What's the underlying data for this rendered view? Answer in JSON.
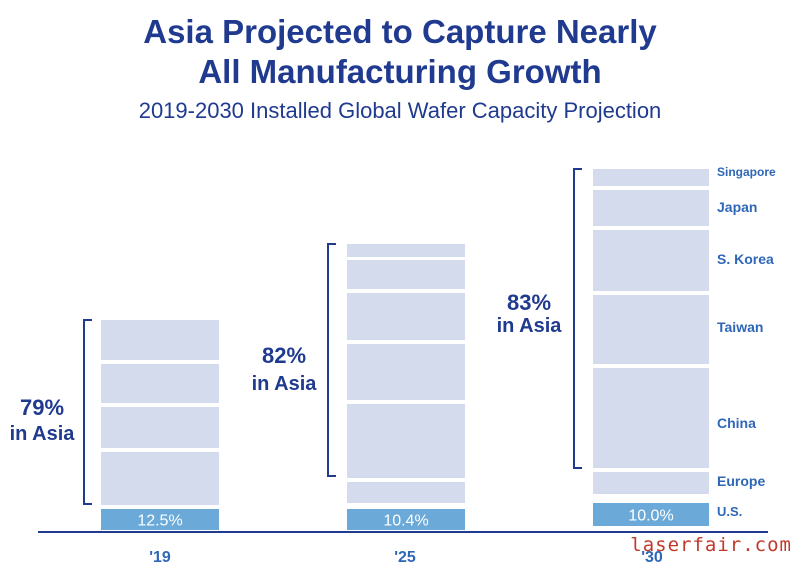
{
  "header": {
    "title_line1": "Asia Projected to Capture Nearly",
    "title_line2": "All Manufacturing Growth",
    "subtitle": "2019-2030 Installed Global Wafer Capacity Projection"
  },
  "watermark": "laserfair.com",
  "colors": {
    "title": "#1f3a8f",
    "segment": "#d3dbec",
    "us_segment": "#6aa9d8",
    "bracket": "#1f3a8f",
    "axis": "#1f3a8f",
    "labels": "#2f67b8"
  },
  "chart_data": {
    "type": "bar",
    "stacked": true,
    "categories": [
      "'19",
      "'25",
      "'30"
    ],
    "us_share_labels": [
      "12.5%",
      "10.4%",
      "10.0%"
    ],
    "asia_share_labels": [
      {
        "pct": "79%",
        "text": "in Asia"
      },
      {
        "pct": "82%",
        "text": "in Asia"
      },
      {
        "pct": "83%",
        "text": "in Asia"
      }
    ],
    "segment_order": [
      "U.S.",
      "Europe",
      "China",
      "Taiwan",
      "S. Korea",
      "Japan",
      "Singapore"
    ],
    "segment_labels_2030": [
      "Singapore",
      "Japan",
      "S. Korea",
      "Taiwan",
      "China",
      "Europe",
      "U.S."
    ],
    "series": [
      {
        "values": [
          12.5,
          10.4,
          10.0
        ]
      },
      {
        "values": [
          null,
          null,
          null
        ]
      },
      {
        "values": [
          null,
          null,
          null
        ]
      },
      {
        "values": [
          null,
          null,
          null
        ]
      },
      {
        "values": [
          null,
          null,
          null
        ]
      },
      {
        "values": [
          null,
          null,
          null
        ]
      },
      {
        "values": [
          null,
          null,
          null
        ]
      }
    ],
    "grid": false,
    "legend": "right-of-last-bar"
  }
}
